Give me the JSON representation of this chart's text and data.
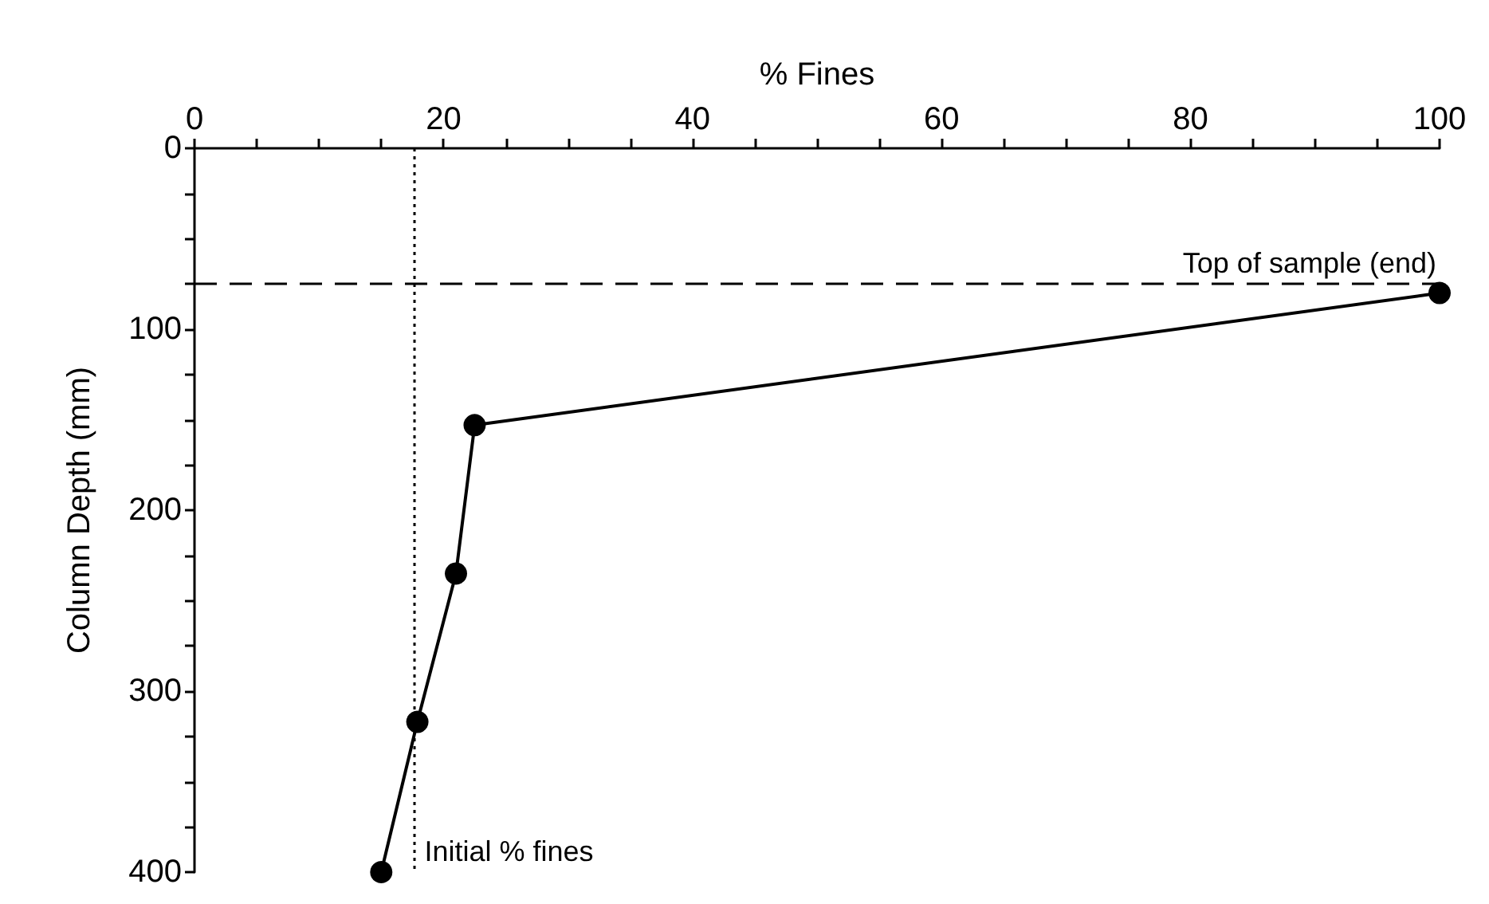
{
  "chart_data": {
    "type": "line",
    "xlabel": "% Fines",
    "ylabel": "Column Depth (mm)",
    "x": [
      100,
      22.5,
      21,
      17.9,
      15
    ],
    "series": [
      {
        "color": "#000000",
        "values": [
          80,
          153,
          235,
          317,
          400
        ]
      }
    ],
    "xlim": [
      0,
      100
    ],
    "xticks": [
      0,
      {
        "value": 5,
        "label": null
      },
      {
        "value": 10,
        "label": null
      },
      {
        "value": 15,
        "label": null
      },
      20,
      {
        "value": 25,
        "label": null
      },
      {
        "value": 30,
        "label": null
      },
      {
        "value": 35,
        "label": null
      },
      40,
      {
        "value": 45,
        "label": null
      },
      {
        "value": 50,
        "label": null
      },
      {
        "value": 55,
        "label": null
      },
      60,
      {
        "value": 65,
        "label": null
      },
      {
        "value": 70,
        "label": null
      },
      {
        "value": 75,
        "label": null
      },
      80,
      {
        "value": 85,
        "label": null
      },
      {
        "value": 90,
        "label": null
      },
      {
        "value": 95,
        "label": null
      },
      100
    ],
    "ylim": [
      400,
      0
    ],
    "yticks": [
      0,
      {
        "value": 25,
        "label": null
      },
      {
        "value": 50,
        "label": null
      },
      {
        "value": 75,
        "label": null
      },
      100,
      {
        "value": 125,
        "label": null
      },
      {
        "value": 150,
        "label": null
      },
      {
        "value": 175,
        "label": null
      },
      200,
      {
        "value": 225,
        "label": null
      },
      {
        "value": 250,
        "label": null
      },
      {
        "value": 275,
        "label": null
      },
      300,
      {
        "value": 325,
        "label": null
      },
      {
        "value": 350,
        "label": null
      },
      {
        "value": 375,
        "label": null
      },
      400
    ],
    "ref_lines": [
      {
        "axis": "y",
        "value": 75,
        "label": "Top of sample (end)",
        "line_style": "dashed",
        "color": "#000000"
      },
      {
        "axis": "x",
        "value": 17.7,
        "label": "Initial % fines",
        "line_style": "dotted",
        "color": "#000000"
      }
    ],
    "marker": "circle",
    "line_style": "solid"
  }
}
